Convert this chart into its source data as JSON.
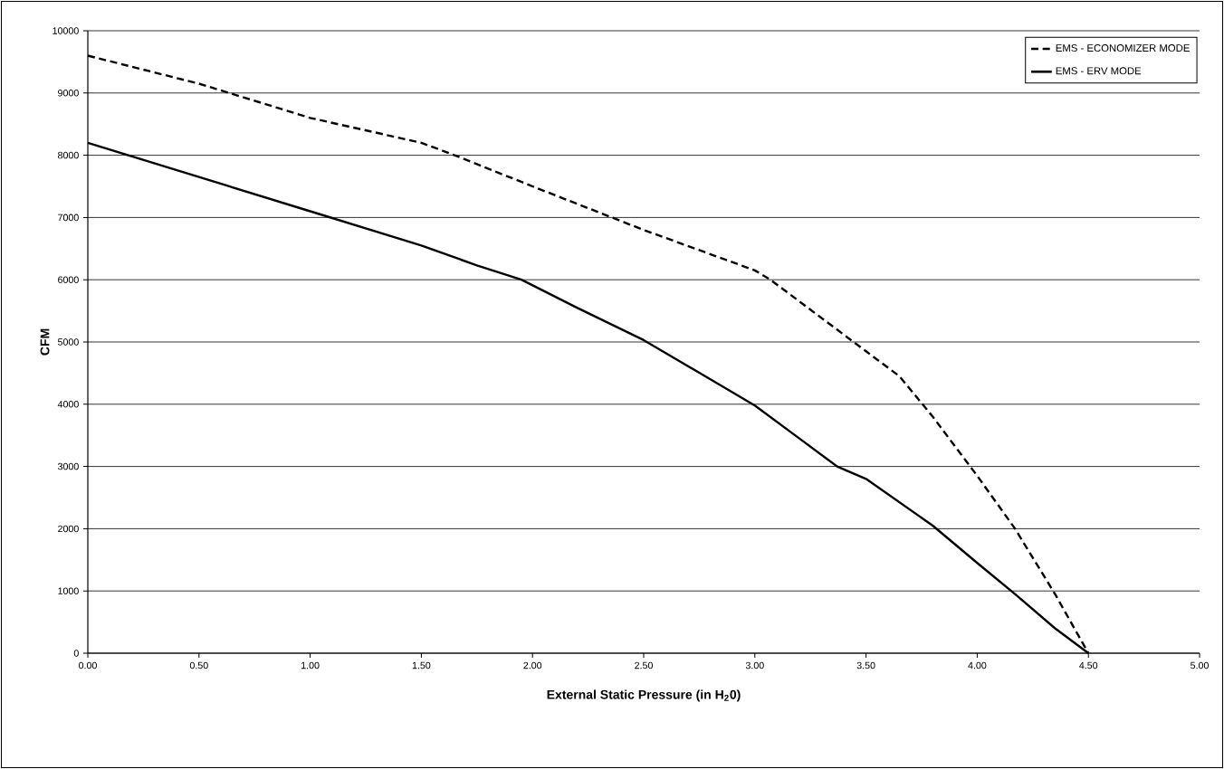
{
  "chart_data": {
    "type": "line",
    "xlabel": "External Static Pressure (in H$_{2}$0)",
    "ylabel": "CFM",
    "xlim": [
      0,
      5
    ],
    "ylim": [
      0,
      10000
    ],
    "xticks": [
      {
        "value": 0,
        "label": "0.00"
      },
      {
        "value": 0.5,
        "label": "0.50"
      },
      {
        "value": 1,
        "label": "1.00"
      },
      {
        "value": 1.5,
        "label": "1.50"
      },
      {
        "value": 2,
        "label": "2.00"
      },
      {
        "value": 2.5,
        "label": "2.50"
      },
      {
        "value": 3,
        "label": "3.00"
      },
      {
        "value": 3.5,
        "label": "3.50"
      },
      {
        "value": 4,
        "label": "4.00"
      },
      {
        "value": 4.5,
        "label": "4.50"
      },
      {
        "value": 5,
        "label": "5.00"
      }
    ],
    "yticks": [
      0,
      1000,
      2000,
      3000,
      4000,
      5000,
      6000,
      7000,
      8000,
      9000,
      10000
    ],
    "grid": "y",
    "legend": "top right",
    "marker": "none",
    "series": [
      {
        "name": "EMS - ECONOMIZER MODE",
        "color": "#000000",
        "line_style": "dashed",
        "x": [
          0,
          0.5,
          1.0,
          1.5,
          1.65,
          2.0,
          2.5,
          3.0,
          3.07,
          3.5,
          3.65,
          3.8,
          4.0,
          4.17,
          4.35,
          4.5
        ],
        "values": [
          9600,
          9150,
          8600,
          8200,
          8000,
          7500,
          6800,
          6150,
          6000,
          4850,
          4450,
          3800,
          2850,
          2000,
          950,
          0
        ]
      },
      {
        "name": "EMS - ERV MODE",
        "color": "#000000",
        "line_style": "solid",
        "x": [
          0,
          0.5,
          1.0,
          1.5,
          1.75,
          1.95,
          2.2,
          2.5,
          2.8,
          3.0,
          3.2,
          3.37,
          3.5,
          3.8,
          4.0,
          4.17,
          4.35,
          4.5
        ],
        "values": [
          8200,
          7650,
          7100,
          6550,
          6230,
          6000,
          5550,
          5030,
          4400,
          3980,
          3450,
          3000,
          2800,
          2050,
          1450,
          950,
          400,
          0
        ]
      }
    ]
  }
}
